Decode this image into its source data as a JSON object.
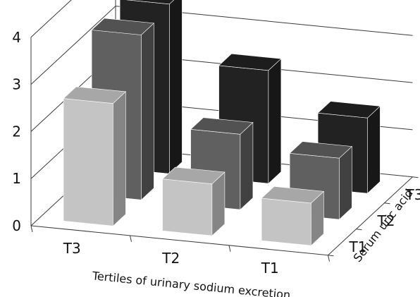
{
  "chart_data": {
    "type": "bar",
    "subtype": "3d-column",
    "title": "",
    "xlabel": "Tertiles of urinary sodium excretion",
    "zlabel": "Serum uric acid",
    "ylabel": "",
    "x_categories": [
      "T3",
      "T2",
      "T1"
    ],
    "depth_categories": [
      "T1",
      "T2",
      "T3"
    ],
    "ylim": [
      0,
      4
    ],
    "yticks": [
      "0",
      "1",
      "2",
      "3",
      "4"
    ],
    "grid": true,
    "legend": "none",
    "series": [
      {
        "depth": "T1",
        "color": "#c4c4c4",
        "values": [
          2.6,
          1.1,
          0.9
        ]
      },
      {
        "depth": "T2",
        "color": "#606060",
        "values": [
          3.5,
          1.6,
          1.3
        ]
      },
      {
        "depth": "T3",
        "color": "#222222",
        "values": [
          3.6,
          2.4,
          1.6
        ]
      }
    ]
  }
}
